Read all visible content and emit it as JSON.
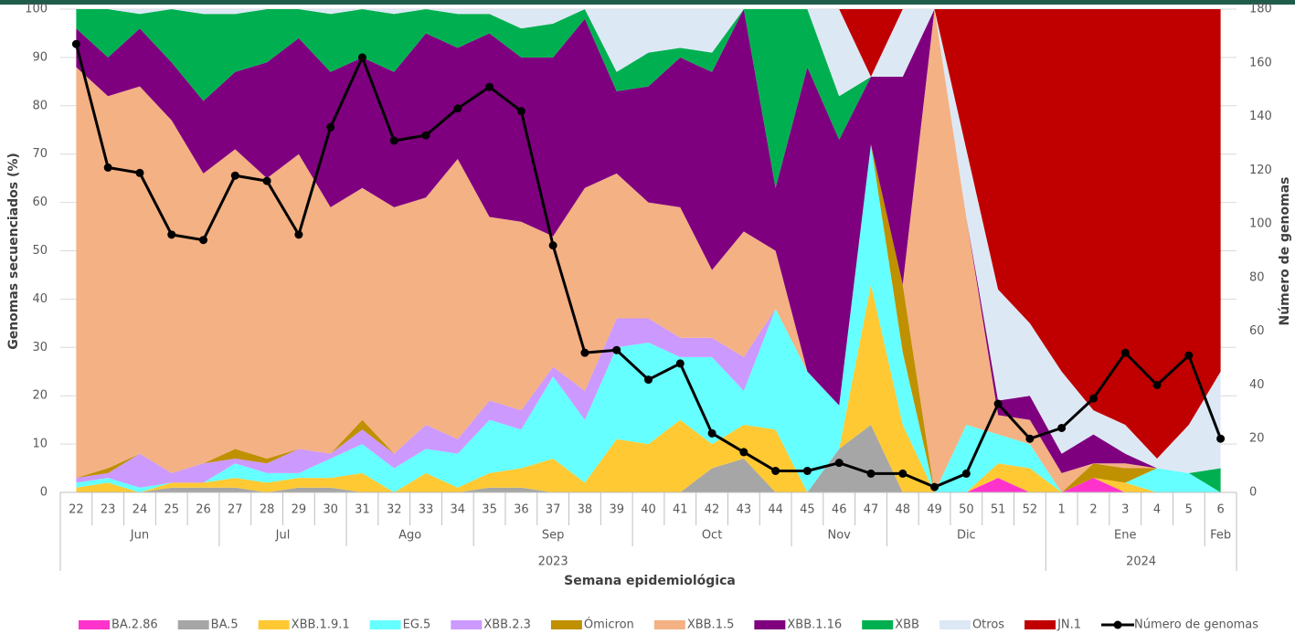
{
  "chart_data": {
    "type": "area",
    "stacked": true,
    "x_label": "Semana epidemiológica",
    "y_label": "Genomas secuenciados (%)",
    "y2_label": "Número de genomas",
    "categories": [
      "22",
      "23",
      "24",
      "25",
      "26",
      "27",
      "28",
      "29",
      "30",
      "31",
      "32",
      "33",
      "34",
      "35",
      "36",
      "37",
      "38",
      "39",
      "40",
      "41",
      "42",
      "43",
      "44",
      "45",
      "46",
      "47",
      "48",
      "49",
      "50",
      "51",
      "52",
      "1",
      "2",
      "3",
      "4",
      "5",
      "6"
    ],
    "months": [
      "Jun",
      null,
      null,
      null,
      null,
      "Jul",
      null,
      null,
      null,
      "Ago",
      null,
      null,
      null,
      "Sep",
      null,
      null,
      null,
      null,
      "Oct",
      null,
      null,
      null,
      null,
      "Nov",
      null,
      null,
      "Dic",
      null,
      null,
      null,
      null,
      "Ene",
      null,
      null,
      null,
      null,
      "Feb"
    ],
    "years": [
      "2023",
      null,
      null,
      null,
      null,
      null,
      null,
      null,
      null,
      null,
      null,
      null,
      null,
      null,
      null,
      null,
      null,
      null,
      null,
      null,
      null,
      null,
      null,
      null,
      null,
      null,
      null,
      null,
      null,
      null,
      null,
      "2024",
      null,
      null,
      null,
      null,
      null
    ],
    "ylim": [
      0,
      100
    ],
    "yticks": [
      0,
      10,
      20,
      30,
      40,
      50,
      60,
      70,
      80,
      90,
      100
    ],
    "y2lim": [
      0,
      180
    ],
    "y2ticks": [
      0,
      20,
      40,
      60,
      80,
      100,
      120,
      140,
      160,
      180
    ],
    "grid": true,
    "legend": "bottom",
    "series": [
      {
        "name": "BA.2.86",
        "color": "#ff33cc",
        "values": [
          0,
          0,
          0,
          0,
          0,
          0,
          0,
          0,
          0,
          0,
          0,
          0,
          0,
          0,
          0,
          0,
          0,
          0,
          0,
          0,
          0,
          0,
          0,
          0,
          0,
          0,
          0,
          0,
          0,
          3,
          0,
          0,
          3,
          0,
          0,
          0,
          0
        ]
      },
      {
        "name": "BA.5",
        "color": "#a6a6a6",
        "values": [
          0,
          0,
          0,
          1,
          1,
          1,
          0,
          1,
          1,
          0,
          0,
          0,
          0,
          1,
          1,
          0,
          0,
          0,
          0,
          0,
          5,
          7,
          0,
          0,
          9,
          14,
          0,
          0,
          0,
          0,
          0,
          0,
          0,
          0,
          0,
          0,
          0
        ]
      },
      {
        "name": "XBB.1.9.1",
        "color": "#ffc933",
        "values": [
          1,
          2,
          0,
          1,
          1,
          2,
          2,
          2,
          2,
          4,
          0,
          4,
          1,
          3,
          4,
          7,
          2,
          11,
          10,
          15,
          5,
          7,
          13,
          0,
          0,
          29,
          14,
          0,
          0,
          3,
          5,
          0,
          0,
          2,
          0,
          0,
          0
        ]
      },
      {
        "name": "EG.5",
        "color": "#66ffff",
        "values": [
          1,
          1,
          1,
          0,
          0,
          3,
          2,
          1,
          4,
          6,
          5,
          5,
          7,
          11,
          8,
          17,
          13,
          19,
          21,
          13,
          18,
          7,
          25,
          25,
          9,
          29,
          15,
          0,
          14,
          6,
          5,
          0,
          0,
          0,
          5,
          4,
          0
        ]
      },
      {
        "name": "XBB.2.3",
        "color": "#cc99ff",
        "values": [
          1,
          1,
          7,
          2,
          4,
          1,
          2,
          5,
          1,
          3,
          3,
          5,
          3,
          4,
          4,
          2,
          6,
          6,
          5,
          4,
          4,
          7,
          0,
          0,
          0,
          0,
          0,
          0,
          0,
          0,
          0,
          0,
          0,
          0,
          0,
          0,
          0
        ]
      },
      {
        "name": "Ómicron",
        "color": "#bf9000",
        "values": [
          0,
          1,
          0,
          0,
          0,
          2,
          1,
          0,
          0,
          2,
          0,
          0,
          0,
          0,
          0,
          0,
          0,
          0,
          0,
          0,
          0,
          0,
          0,
          0,
          0,
          0,
          14,
          0,
          0,
          0,
          0,
          0,
          3,
          3,
          0,
          0,
          0
        ]
      },
      {
        "name": "XBB.1.5",
        "color": "#f4b183",
        "values": [
          85,
          77,
          76,
          73,
          60,
          62,
          58,
          61,
          51,
          48,
          51,
          47,
          58,
          38,
          39,
          27,
          42,
          30,
          24,
          27,
          14,
          26,
          12,
          0,
          0,
          0,
          0,
          100,
          43,
          4,
          5,
          4,
          0,
          1,
          0,
          0,
          0
        ]
      },
      {
        "name": "XBB.1.16",
        "color": "#7f007f",
        "values": [
          8,
          8,
          12,
          12,
          15,
          16,
          24,
          24,
          28,
          27,
          28,
          34,
          23,
          38,
          34,
          37,
          35,
          17,
          24,
          31,
          41,
          46,
          13,
          63,
          55,
          14,
          43,
          0,
          0,
          3,
          5,
          4,
          6,
          2,
          0,
          0,
          0
        ]
      },
      {
        "name": "XBB",
        "color": "#00b050",
        "values": [
          4,
          10,
          3,
          11,
          18,
          12,
          11,
          6,
          12,
          10,
          12,
          5,
          7,
          4,
          6,
          7,
          2,
          4,
          7,
          2,
          4,
          0,
          37,
          12,
          9,
          0,
          0,
          0,
          0,
          0,
          0,
          0,
          0,
          0,
          0,
          0,
          5
        ]
      },
      {
        "name": "Otros",
        "color": "#dde8f5",
        "values": [
          0,
          0,
          1,
          0,
          1,
          1,
          0,
          0,
          1,
          0,
          1,
          0,
          1,
          1,
          4,
          3,
          0,
          13,
          9,
          8,
          9,
          0,
          0,
          0,
          18,
          0,
          14,
          0,
          14,
          23,
          15,
          17,
          5,
          6,
          2,
          10,
          20
        ]
      },
      {
        "name": "JN.1",
        "color": "#c00000",
        "values": [
          0,
          0,
          0,
          0,
          0,
          0,
          0,
          0,
          0,
          0,
          0,
          0,
          0,
          0,
          0,
          0,
          0,
          0,
          0,
          0,
          0,
          0,
          0,
          0,
          0,
          14,
          0,
          0,
          29,
          58,
          65,
          75,
          83,
          86,
          93,
          86,
          75
        ]
      },
      {
        "name": "Número de genomas",
        "color": "#000000",
        "type": "line",
        "axis": "y2",
        "values": [
          167,
          121,
          119,
          96,
          94,
          118,
          116,
          96,
          136,
          162,
          131,
          133,
          143,
          151,
          142,
          92,
          52,
          53,
          42,
          48,
          22,
          15,
          8,
          8,
          11,
          7,
          7,
          2,
          7,
          33,
          20,
          24,
          35,
          52,
          40,
          51,
          20
        ]
      }
    ]
  }
}
